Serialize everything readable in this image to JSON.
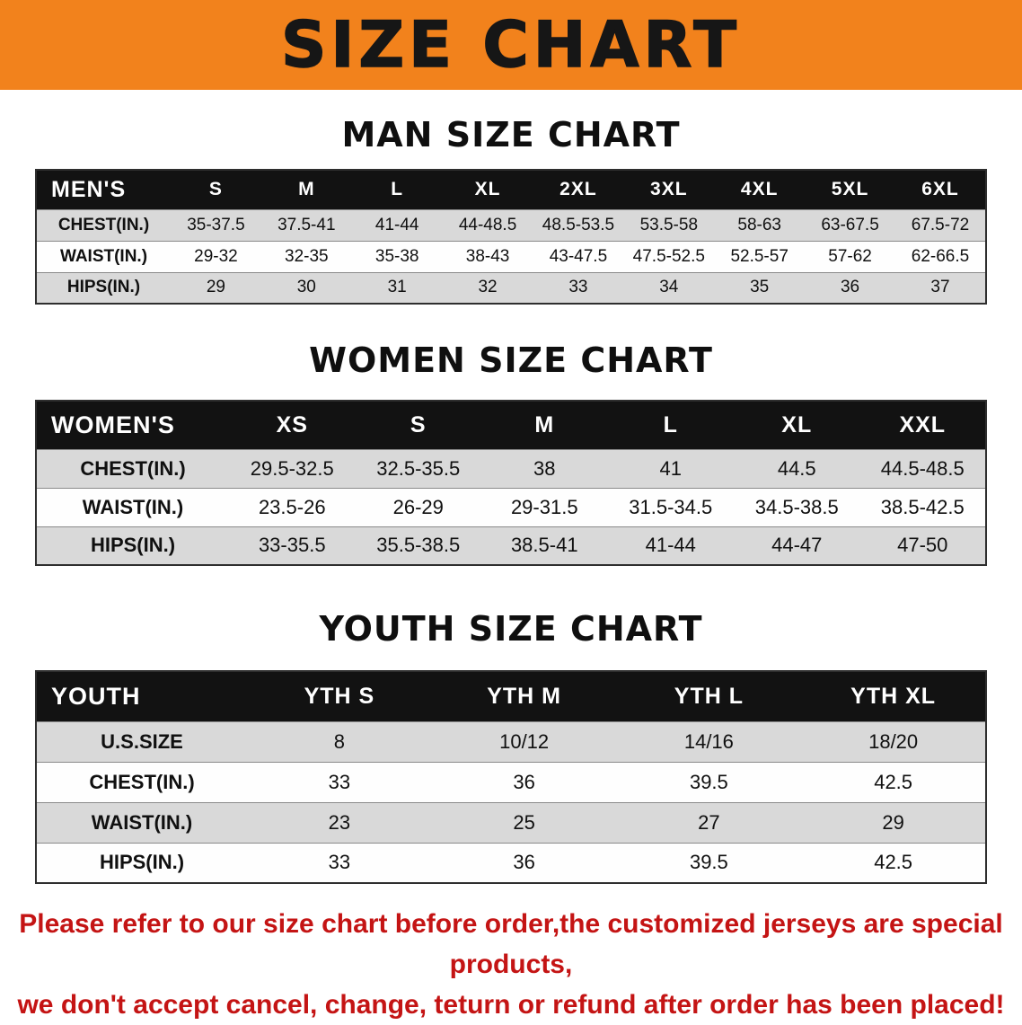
{
  "banner": {
    "title": "SIZE CHART"
  },
  "sections": [
    {
      "id": "men",
      "heading": "MAN SIZE CHART",
      "table": {
        "header": [
          "MEN'S",
          "S",
          "M",
          "L",
          "XL",
          "2XL",
          "3XL",
          "4XL",
          "5XL",
          "6XL"
        ],
        "rows": [
          [
            "CHEST(IN.)",
            "35-37.5",
            "37.5-41",
            "41-44",
            "44-48.5",
            "48.5-53.5",
            "53.5-58",
            "58-63",
            "63-67.5",
            "67.5-72"
          ],
          [
            "WAIST(IN.)",
            "29-32",
            "32-35",
            "35-38",
            "38-43",
            "43-47.5",
            "47.5-52.5",
            "52.5-57",
            "57-62",
            "62-66.5"
          ],
          [
            "HIPS(IN.)",
            "29",
            "30",
            "31",
            "32",
            "33",
            "34",
            "35",
            "36",
            "37"
          ]
        ]
      }
    },
    {
      "id": "women",
      "heading": "WOMEN SIZE CHART",
      "table": {
        "header": [
          "WOMEN'S",
          "XS",
          "S",
          "M",
          "L",
          "XL",
          "XXL"
        ],
        "rows": [
          [
            "CHEST(IN.)",
            "29.5-32.5",
            "32.5-35.5",
            "38",
            "41",
            "44.5",
            "44.5-48.5"
          ],
          [
            "WAIST(IN.)",
            "23.5-26",
            "26-29",
            "29-31.5",
            "31.5-34.5",
            "34.5-38.5",
            "38.5-42.5"
          ],
          [
            "HIPS(IN.)",
            "33-35.5",
            "35.5-38.5",
            "38.5-41",
            "41-44",
            "44-47",
            "47-50"
          ]
        ]
      }
    },
    {
      "id": "youth",
      "heading": "YOUTH SIZE CHART",
      "table": {
        "header": [
          "YOUTH",
          "YTH S",
          "YTH M",
          "YTH L",
          "YTH XL"
        ],
        "rows": [
          [
            "U.S.SIZE",
            "8",
            "10/12",
            "14/16",
            "18/20"
          ],
          [
            "CHEST(IN.)",
            "33",
            "36",
            "39.5",
            "42.5"
          ],
          [
            "WAIST(IN.)",
            "23",
            "25",
            "27",
            "29"
          ],
          [
            "HIPS(IN.)",
            "33",
            "36",
            "39.5",
            "42.5"
          ]
        ]
      }
    }
  ],
  "footer": {
    "line1": "Please refer to our size chart before order,the customized jerseys are special products,",
    "line2": "we don't accept cancel, change, teturn or refund after order has been placed!"
  },
  "colors": {
    "banner_orange": "#f2821c",
    "header_black": "#121212",
    "row_gray": "#d9d9d9",
    "row_white": "#fefefe",
    "footer_red": "#c41414"
  }
}
